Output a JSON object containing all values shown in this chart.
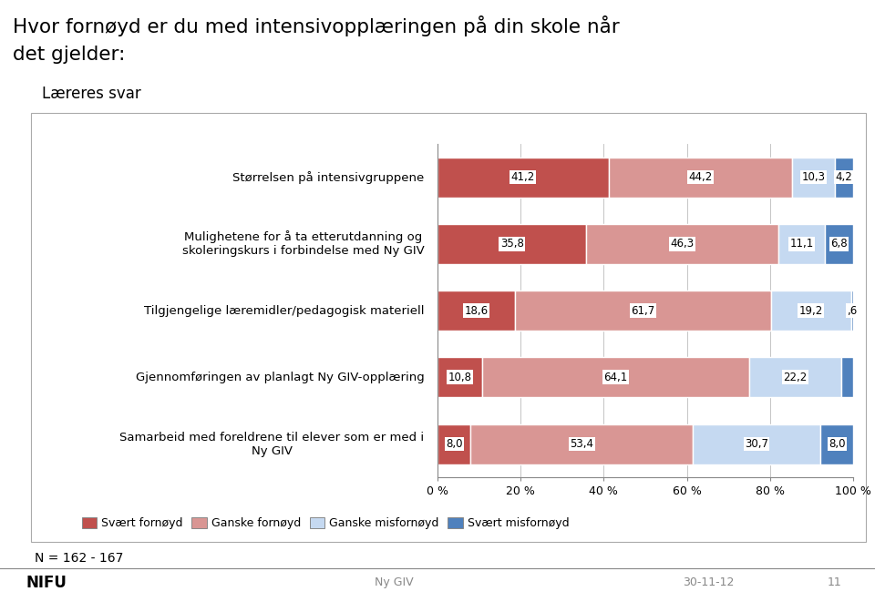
{
  "title_line1": "Hvor fornøyd er du med intensivopplæringen på din skole når",
  "title_line2": "det gjelder:",
  "subtitle": "Læreres svar",
  "categories": [
    "Størrelsen på intensivgruppene",
    "Mulighetene for å ta etterutdanning og\nskoleringskurs i forbindelse med Ny GIV",
    "Tilgjengelige læremidler/pedagogisk materiell",
    "Gjennomføringen av planlagt Ny GIV-opplæring",
    "Samarbeid med foreldrene til elever som er med i\nNy GIV"
  ],
  "data": [
    [
      41.2,
      44.2,
      10.3,
      4.2
    ],
    [
      35.8,
      46.3,
      11.1,
      6.8
    ],
    [
      18.6,
      61.7,
      19.2,
      0.6
    ],
    [
      10.8,
      64.1,
      22.2,
      2.9
    ],
    [
      8.0,
      53.4,
      30.7,
      8.0
    ]
  ],
  "labels": [
    [
      "41,2",
      "44,2",
      "10,3",
      "4,2"
    ],
    [
      "35,8",
      "46,3",
      "11,1",
      "6,8"
    ],
    [
      "18,6",
      "61,7",
      "19,2",
      ",6"
    ],
    [
      "10,8",
      "64,1",
      "22,2",
      ""
    ],
    [
      "8,0",
      "53,4",
      "30,7",
      "8,0"
    ]
  ],
  "colors": [
    "#C0504D",
    "#D99694",
    "#C5D9F1",
    "#4F81BD"
  ],
  "legend_labels": [
    "Svært fornøyd",
    "Ganske fornøyd",
    "Ganske misfornøyd",
    "Svært misfornøyd"
  ],
  "xlabel_ticks": [
    0,
    20,
    40,
    60,
    80,
    100
  ],
  "xlabel_labels": [
    "0 %",
    "20 %",
    "40 %",
    "60 %",
    "80 %",
    "100 %"
  ],
  "footnote": "N = 162 - 167",
  "footer_left": "NIFU",
  "footer_center": "Ny GIV",
  "footer_right": "30-11-12",
  "footer_page": "11",
  "background_color": "#FFFFFF"
}
